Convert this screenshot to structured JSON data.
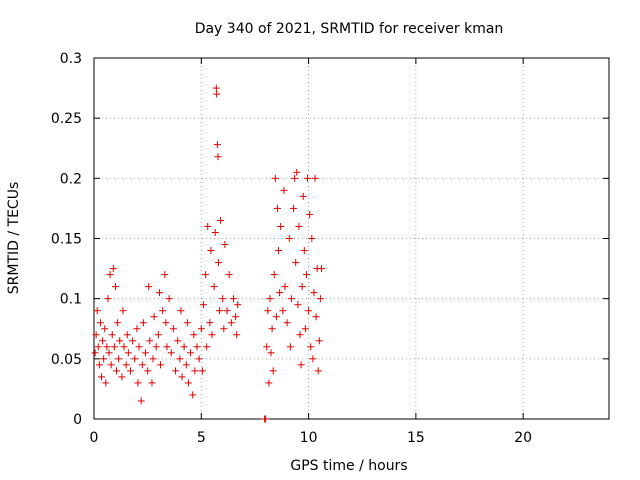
{
  "chart_data": {
    "type": "scatter",
    "title": "Day 340 of 2021, SRMTID for receiver kman",
    "xlabel": "GPS time / hours",
    "ylabel": "SRMTID / TECUs",
    "xlim": [
      0,
      24
    ],
    "ylim": [
      0,
      0.3
    ],
    "x_ticks": [
      "0",
      "5",
      "10",
      "15",
      "20"
    ],
    "y_ticks": [
      "0",
      "0.05",
      "0.1",
      "0.15",
      "0.2",
      "0.25",
      "0.3"
    ],
    "grid": true,
    "marker": "+",
    "color": "#e00000",
    "series": [
      {
        "points": [
          [
            0.05,
            0.055
          ],
          [
            0.1,
            0.07
          ],
          [
            0.15,
            0.09
          ],
          [
            0.2,
            0.06
          ],
          [
            0.25,
            0.045
          ],
          [
            0.3,
            0.08
          ],
          [
            0.35,
            0.035
          ],
          [
            0.4,
            0.065
          ],
          [
            0.45,
            0.05
          ],
          [
            0.5,
            0.075
          ],
          [
            0.55,
            0.03
          ],
          [
            0.6,
            0.06
          ],
          [
            0.65,
            0.1
          ],
          [
            0.7,
            0.055
          ],
          [
            0.75,
            0.12
          ],
          [
            0.8,
            0.045
          ],
          [
            0.85,
            0.07
          ],
          [
            0.9,
            0.125
          ],
          [
            0.95,
            0.06
          ],
          [
            1.0,
            0.11
          ],
          [
            1.05,
            0.04
          ],
          [
            1.1,
            0.08
          ],
          [
            1.15,
            0.05
          ],
          [
            1.2,
            0.065
          ],
          [
            1.3,
            0.035
          ],
          [
            1.35,
            0.09
          ],
          [
            1.4,
            0.06
          ],
          [
            1.5,
            0.045
          ],
          [
            1.55,
            0.07
          ],
          [
            1.6,
            0.055
          ],
          [
            1.7,
            0.04
          ],
          [
            1.8,
            0.065
          ],
          [
            1.9,
            0.05
          ],
          [
            2.0,
            0.075
          ],
          [
            2.05,
            0.03
          ],
          [
            2.1,
            0.06
          ],
          [
            2.2,
            0.015
          ],
          [
            2.25,
            0.045
          ],
          [
            2.3,
            0.08
          ],
          [
            2.4,
            0.055
          ],
          [
            2.5,
            0.04
          ],
          [
            2.55,
            0.11
          ],
          [
            2.6,
            0.065
          ],
          [
            2.7,
            0.03
          ],
          [
            2.75,
            0.05
          ],
          [
            2.8,
            0.085
          ],
          [
            2.9,
            0.06
          ],
          [
            3.0,
            0.07
          ],
          [
            3.05,
            0.105
          ],
          [
            3.1,
            0.045
          ],
          [
            3.2,
            0.09
          ],
          [
            3.3,
            0.12
          ],
          [
            3.35,
            0.08
          ],
          [
            3.4,
            0.06
          ],
          [
            3.5,
            0.1
          ],
          [
            3.6,
            0.055
          ],
          [
            3.7,
            0.075
          ],
          [
            3.8,
            0.04
          ],
          [
            3.9,
            0.065
          ],
          [
            4.0,
            0.05
          ],
          [
            4.05,
            0.09
          ],
          [
            4.1,
            0.035
          ],
          [
            4.2,
            0.06
          ],
          [
            4.3,
            0.045
          ],
          [
            4.35,
            0.08
          ],
          [
            4.4,
            0.03
          ],
          [
            4.5,
            0.055
          ],
          [
            4.6,
            0.02
          ],
          [
            4.65,
            0.07
          ],
          [
            4.7,
            0.04
          ],
          [
            4.8,
            0.06
          ],
          [
            4.9,
            0.05
          ],
          [
            5.0,
            0.075
          ],
          [
            5.05,
            0.04
          ],
          [
            5.1,
            0.095
          ],
          [
            5.2,
            0.12
          ],
          [
            5.25,
            0.06
          ],
          [
            5.3,
            0.16
          ],
          [
            5.4,
            0.08
          ],
          [
            5.45,
            0.14
          ],
          [
            5.5,
            0.07
          ],
          [
            5.6,
            0.11
          ],
          [
            5.65,
            0.155
          ],
          [
            5.7,
            0.275
          ],
          [
            5.72,
            0.27
          ],
          [
            5.75,
            0.228
          ],
          [
            5.78,
            0.218
          ],
          [
            5.8,
            0.13
          ],
          [
            5.85,
            0.09
          ],
          [
            5.9,
            0.165
          ],
          [
            6.0,
            0.1
          ],
          [
            6.05,
            0.075
          ],
          [
            6.1,
            0.145
          ],
          [
            6.2,
            0.09
          ],
          [
            6.3,
            0.12
          ],
          [
            6.4,
            0.08
          ],
          [
            6.5,
            0.1
          ],
          [
            6.6,
            0.085
          ],
          [
            6.65,
            0.07
          ],
          [
            6.7,
            0.095
          ],
          [
            7.95,
            0.0
          ],
          [
            8.0,
            0.0
          ],
          [
            8.05,
            0.06
          ],
          [
            8.1,
            0.09
          ],
          [
            8.15,
            0.03
          ],
          [
            8.2,
            0.1
          ],
          [
            8.25,
            0.055
          ],
          [
            8.3,
            0.075
          ],
          [
            8.35,
            0.04
          ],
          [
            8.4,
            0.12
          ],
          [
            8.45,
            0.2
          ],
          [
            8.5,
            0.085
          ],
          [
            8.55,
            0.175
          ],
          [
            8.6,
            0.14
          ],
          [
            8.65,
            0.105
          ],
          [
            8.7,
            0.16
          ],
          [
            8.8,
            0.09
          ],
          [
            8.85,
            0.19
          ],
          [
            8.9,
            0.11
          ],
          [
            9.0,
            0.08
          ],
          [
            9.1,
            0.15
          ],
          [
            9.15,
            0.06
          ],
          [
            9.2,
            0.1
          ],
          [
            9.3,
            0.175
          ],
          [
            9.35,
            0.2
          ],
          [
            9.4,
            0.13
          ],
          [
            9.45,
            0.205
          ],
          [
            9.5,
            0.095
          ],
          [
            9.55,
            0.16
          ],
          [
            9.6,
            0.07
          ],
          [
            9.65,
            0.045
          ],
          [
            9.7,
            0.11
          ],
          [
            9.75,
            0.185
          ],
          [
            9.8,
            0.14
          ],
          [
            9.85,
            0.075
          ],
          [
            9.9,
            0.12
          ],
          [
            9.95,
            0.2
          ],
          [
            10.0,
            0.09
          ],
          [
            10.05,
            0.17
          ],
          [
            10.1,
            0.06
          ],
          [
            10.15,
            0.15
          ],
          [
            10.2,
            0.05
          ],
          [
            10.25,
            0.105
          ],
          [
            10.3,
            0.2
          ],
          [
            10.35,
            0.085
          ],
          [
            10.4,
            0.125
          ],
          [
            10.45,
            0.04
          ],
          [
            10.5,
            0.065
          ],
          [
            10.55,
            0.1
          ],
          [
            10.6,
            0.125
          ]
        ]
      }
    ]
  }
}
